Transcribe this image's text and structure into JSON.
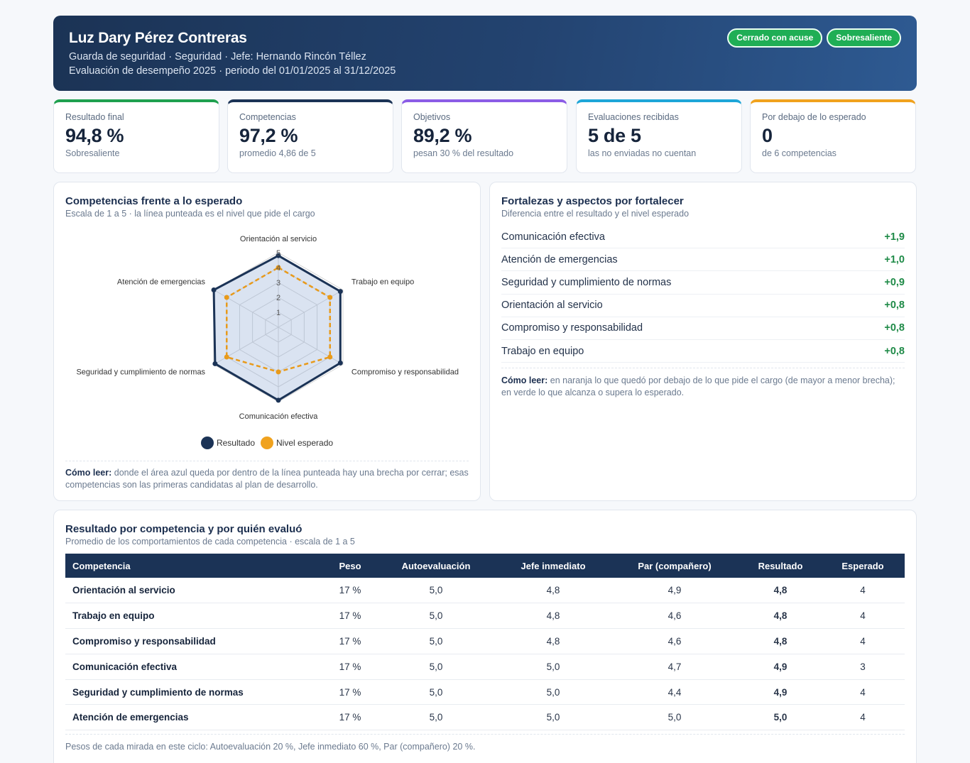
{
  "header": {
    "name": "Luz Dary Pérez Contreras",
    "line1": "Guarda de seguridad · Seguridad · Jefe: Hernando Rincón Téllez",
    "line2": "Evaluación de desempeño 2025 · periodo del 01/01/2025 al 31/12/2025",
    "badges": [
      "Cerrado con acuse",
      "Sobresaliente"
    ]
  },
  "kpis": [
    {
      "label": "Resultado final",
      "value": "94,8 %",
      "note": "Sobresaliente",
      "color": "#1fa04f"
    },
    {
      "label": "Competencias",
      "value": "97,2 %",
      "note": "promedio 4,86 de 5",
      "color": "#1b3356"
    },
    {
      "label": "Objetivos",
      "value": "89,2 %",
      "note": "pesan 30 % del resultado",
      "color": "#8b5ce6"
    },
    {
      "label": "Evaluaciones recibidas",
      "value": "5 de 5",
      "note": "las no enviadas no cuentan",
      "color": "#1ea6d8"
    },
    {
      "label": "Por debajo de lo esperado",
      "value": "0",
      "note": "de 6 competencias",
      "color": "#f0a21e"
    }
  ],
  "radar_panel": {
    "title": "Competencias frente a lo esperado",
    "subtitle": "Escala de 1 a 5 · la línea punteada es el nivel que pide el cargo",
    "howto_label": "Cómo leer:",
    "howto_text": " donde el área azul queda por dentro de la línea punteada hay una brecha por cerrar; esas competencias son las primeras candidatas al plan de desarrollo."
  },
  "chart_data": {
    "type": "radar",
    "categories": [
      "Orientación al servicio",
      "Trabajo en equipo",
      "Compromiso y responsabilidad",
      "Comunicación efectiva",
      "Seguridad y cumplimiento de normas",
      "Atención de emergencias"
    ],
    "series": [
      {
        "name": "Resultado",
        "values": [
          4.8,
          4.8,
          4.8,
          4.9,
          4.9,
          5.0
        ],
        "color": "#1b3356"
      },
      {
        "name": "Nivel esperado",
        "values": [
          4,
          4,
          4,
          3,
          4,
          4
        ],
        "color": "#e89a1a"
      }
    ],
    "rticks": [
      "1",
      "2",
      "3",
      "4",
      "5"
    ],
    "rlim": [
      0,
      5
    ]
  },
  "strengths_panel": {
    "title": "Fortalezas y aspectos por fortalecer",
    "subtitle": "Diferencia entre el resultado y el nivel esperado",
    "items": [
      {
        "name": "Comunicación efectiva",
        "diff": "+1,9"
      },
      {
        "name": "Atención de emergencias",
        "diff": "+1,0"
      },
      {
        "name": "Seguridad y cumplimiento de normas",
        "diff": "+0,9"
      },
      {
        "name": "Orientación al servicio",
        "diff": "+0,8"
      },
      {
        "name": "Compromiso y responsabilidad",
        "diff": "+0,8"
      },
      {
        "name": "Trabajo en equipo",
        "diff": "+0,8"
      }
    ],
    "howto_label": "Cómo leer:",
    "howto_text": " en naranja lo que quedó por debajo de lo que pide el cargo (de mayor a menor brecha); en verde lo que alcanza o supera lo esperado."
  },
  "table_panel": {
    "title": "Resultado por competencia y por quién evaluó",
    "subtitle": "Promedio de los comportamientos de cada competencia · escala de 1 a 5",
    "columns": [
      "Competencia",
      "Peso",
      "Autoevaluación",
      "Jefe inmediato",
      "Par (compañero)",
      "Resultado",
      "Esperado"
    ],
    "rows": [
      [
        "Orientación al servicio",
        "17 %",
        "5,0",
        "4,8",
        "4,9",
        "4,8",
        "4"
      ],
      [
        "Trabajo en equipo",
        "17 %",
        "5,0",
        "4,8",
        "4,6",
        "4,8",
        "4"
      ],
      [
        "Compromiso y responsabilidad",
        "17 %",
        "5,0",
        "4,8",
        "4,6",
        "4,8",
        "4"
      ],
      [
        "Comunicación efectiva",
        "17 %",
        "5,0",
        "5,0",
        "4,7",
        "4,9",
        "3"
      ],
      [
        "Seguridad y cumplimiento de normas",
        "17 %",
        "5,0",
        "5,0",
        "4,4",
        "4,9",
        "4"
      ],
      [
        "Atención de emergencias",
        "17 %",
        "5,0",
        "5,0",
        "5,0",
        "5,0",
        "4"
      ]
    ],
    "footnote": "Pesos de cada mirada en este ciclo: Autoevaluación 20 %, Jefe inmediato 60 %, Par (compañero) 20 %."
  }
}
